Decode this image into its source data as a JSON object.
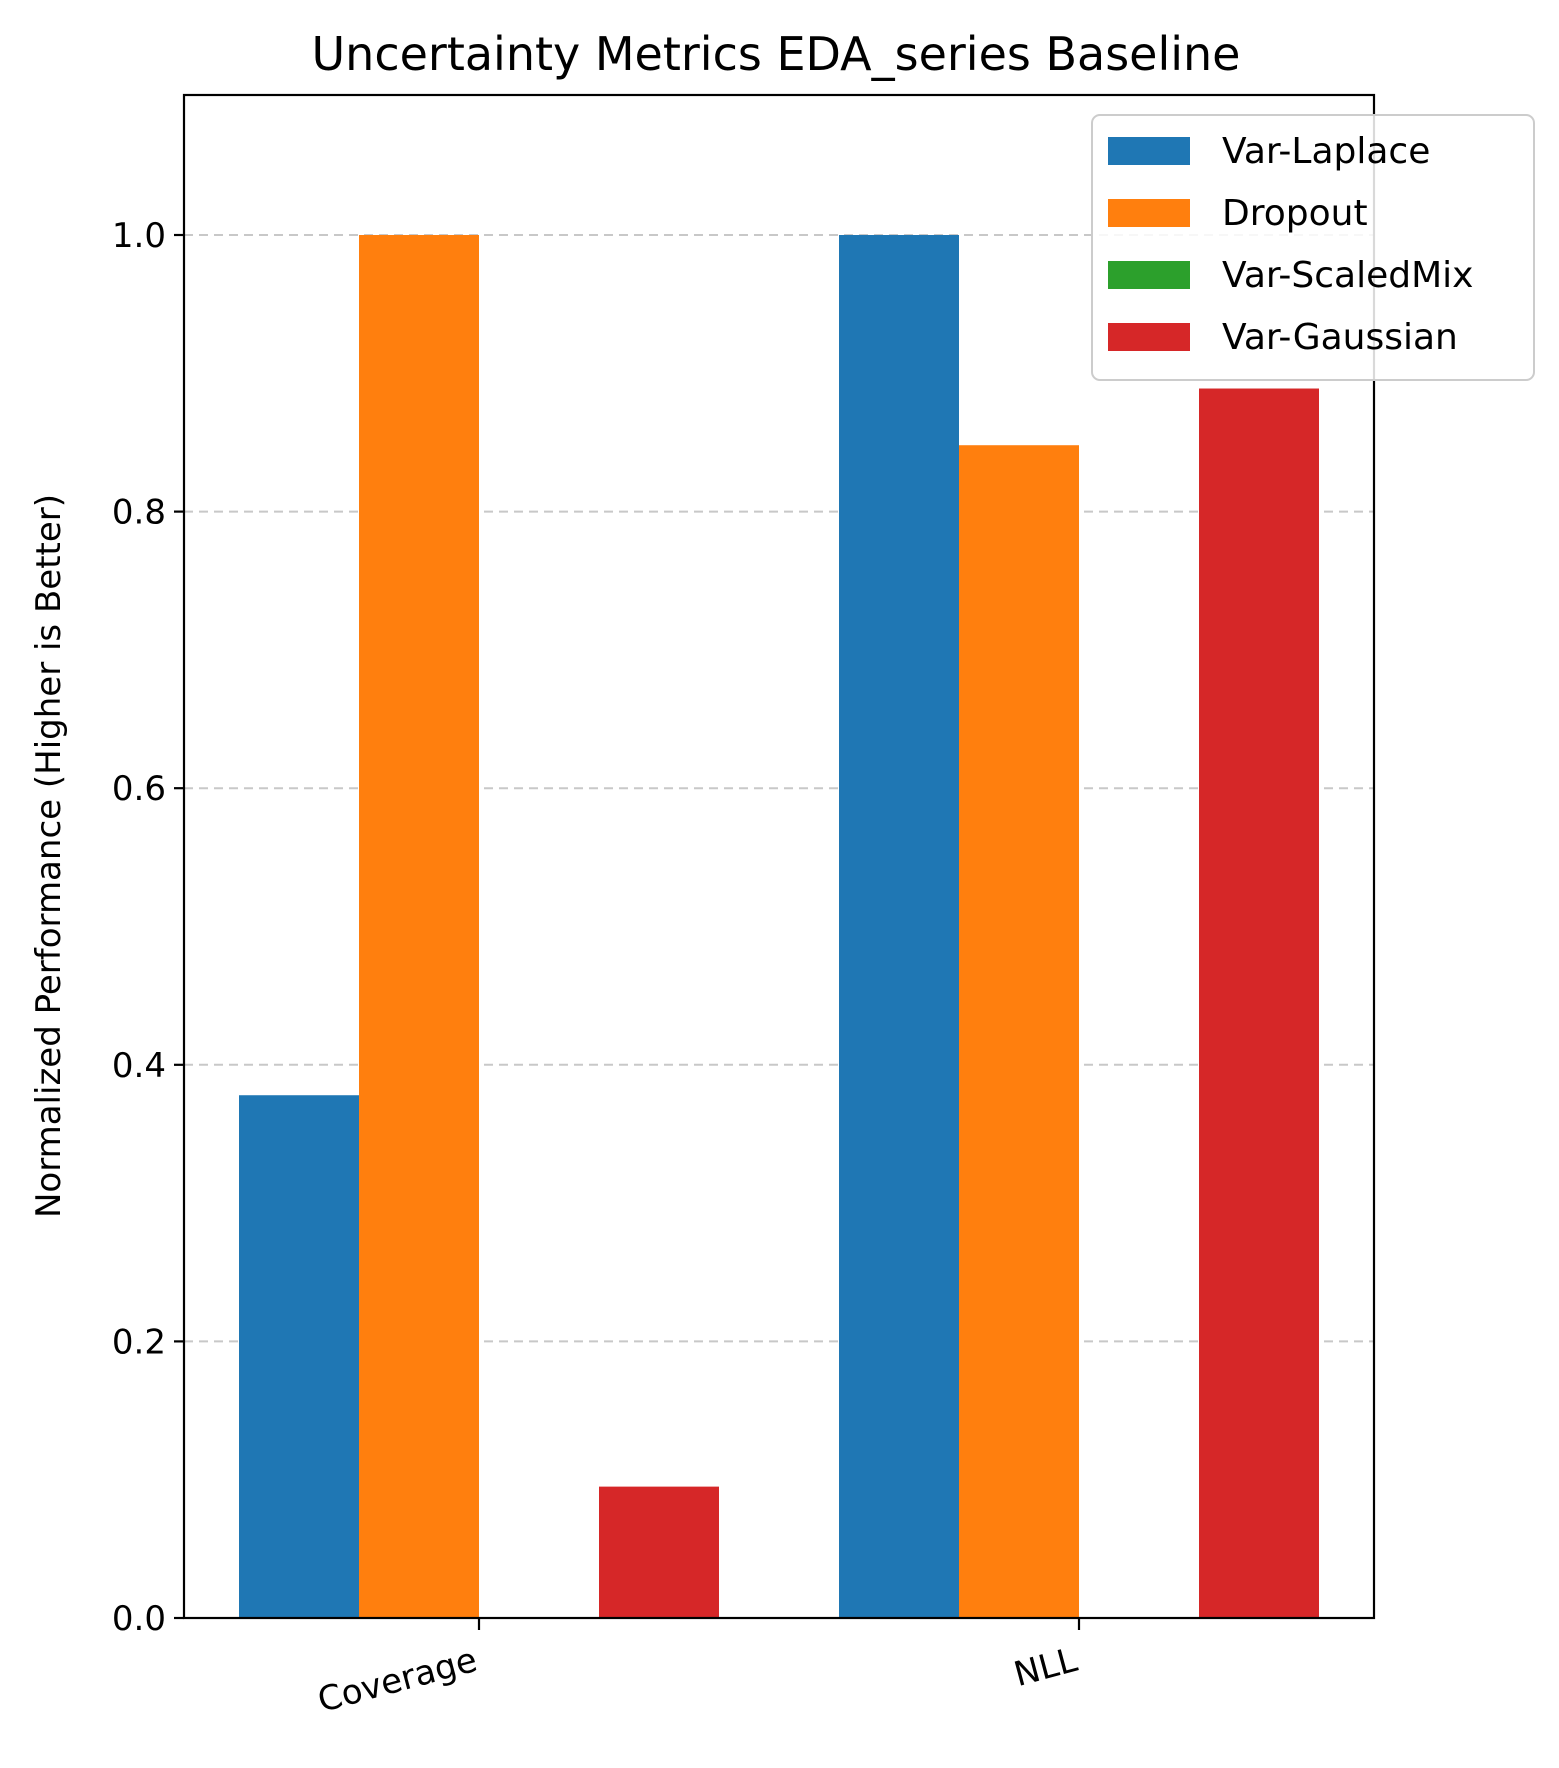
{
  "chart_data": {
    "type": "bar",
    "title": "Uncertainty Metrics EDA_series Baseline",
    "xlabel": "",
    "ylabel": "Normalized Performance (Higher is Better)",
    "categories": [
      "Coverage",
      "NLL"
    ],
    "ylim": [
      0,
      1.1
    ],
    "yticks": [
      0.0,
      0.2,
      0.4,
      0.6,
      0.8,
      1.0
    ],
    "ytick_labels": [
      "0.0",
      "0.2",
      "0.4",
      "0.6",
      "0.8",
      "1.0"
    ],
    "grid": "y-axis dashed",
    "legend_position": "top-right",
    "series": [
      {
        "name": "Var-Laplace",
        "color": "#1f77b4",
        "values": [
          0.378,
          1.0
        ]
      },
      {
        "name": "Dropout",
        "color": "#ff7f0e",
        "values": [
          1.0,
          0.848
        ]
      },
      {
        "name": "Var-ScaledMix",
        "color": "#2ca02c",
        "values": [
          0.0,
          0.0
        ]
      },
      {
        "name": "Var-Gaussian",
        "color": "#d62728",
        "values": [
          0.095,
          0.889
        ]
      }
    ]
  }
}
